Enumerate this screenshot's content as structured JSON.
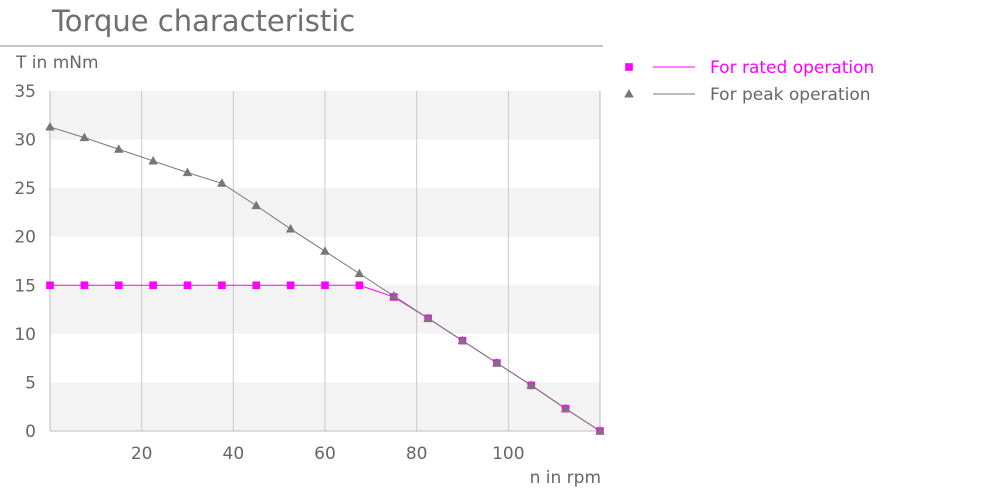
{
  "chart_data": {
    "type": "line",
    "title": "Torque characteristic",
    "xlabel": "n in rpm",
    "ylabel": "T in mNm",
    "xlim": [
      0,
      120
    ],
    "ylim": [
      0,
      35
    ],
    "xticks": [
      20,
      40,
      60,
      80,
      100
    ],
    "yticks": [
      0,
      5,
      10,
      15,
      20,
      25,
      30,
      35
    ],
    "grid": true,
    "legend_position": "right",
    "series": [
      {
        "name": "For rated operation",
        "color": "#ff00ff",
        "marker": "square",
        "x": [
          0,
          7.5,
          15,
          22.5,
          30,
          37.5,
          45,
          52.5,
          60,
          67.5,
          75,
          82.5,
          90,
          97.5,
          105,
          112.5,
          120
        ],
        "y": [
          15,
          15,
          15,
          15,
          15,
          15,
          15,
          15,
          15,
          15,
          13.8,
          11.6,
          9.3,
          7.0,
          4.7,
          2.3,
          0
        ]
      },
      {
        "name": "For peak operation",
        "color": "#777777",
        "marker": "triangle",
        "x": [
          0,
          7.5,
          15,
          22.5,
          30,
          37.5,
          45,
          52.5,
          60,
          67.5,
          75,
          82.5,
          90,
          97.5,
          105,
          112.5,
          120
        ],
        "y": [
          31.3,
          30.2,
          29.0,
          27.8,
          26.6,
          25.5,
          23.2,
          20.8,
          18.5,
          16.2,
          13.9,
          11.6,
          9.3,
          7.0,
          4.7,
          2.3,
          0
        ]
      }
    ]
  }
}
